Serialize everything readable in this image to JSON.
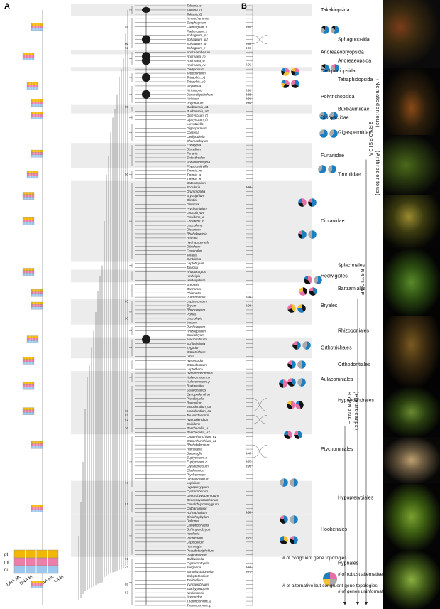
{
  "panels": {
    "a": "A",
    "b": "B"
  },
  "taxa": [
    "Takakia_c",
    "Takakia_l1",
    "Takakia_l2",
    "Ambuchanania",
    "Eosphagnum",
    "Flatbergium_n",
    "Flatbergium_s",
    "Sphagnum_p1",
    "Sphagnum_p2",
    "Sphagnum_g",
    "Sphagnum_r",
    "Andreaeobryum",
    "Andreaea_ro",
    "Andreaea_w",
    "Andreaea_ru",
    "Oedipodium",
    "Tetrodontium",
    "Tetraphis_p1",
    "Tetraphis_p2",
    "Alophosia",
    "Atrichopsis",
    "Dendroligotrichum",
    "Atrichum",
    "Pogonatum",
    "Buxbaumia_a1",
    "Buxbaumia_a2",
    "Diphyscium_f1",
    "Diphyscium_f2",
    "Lorentziella",
    "Gigaspermum",
    "Costesia",
    "Oedipodiella",
    "Chameobryum",
    "Encalypta",
    "Discelium",
    "Funaria",
    "Entosthodon",
    "Aphanorrhegma",
    "Physcomitrella",
    "Timmia_m",
    "Timmia_a",
    "Timmia_n",
    "Catoscopium",
    "Scouleria",
    "Drummondia",
    "Bryoxiphium",
    "Blindia",
    "Grimmia",
    "Ptychomitrium",
    "Leucobryum",
    "Fissidens_d",
    "Fissidens_b",
    "Leucoloma",
    "Dicranum",
    "Rhabdoweisia",
    "Bruchia",
    "Hydropogonella",
    "Ditrichum",
    "Ceratodon",
    "Tortella",
    "Syntrichia",
    "Leptobryum",
    "Tayloria",
    "Rhacocarpus",
    "Hedwigia",
    "Hedwigidium",
    "Breutelia",
    "Bartramia",
    "Philonotis",
    "Pulchrinodus",
    "Leptostomum",
    "Bryum",
    "Rhodobryum",
    "Pohlia",
    "Leucolepis",
    "Mnium",
    "Pyrrhobryum",
    "Rhizogonium",
    "Goniobryum",
    "Macromitrium",
    "Schlotheimia",
    "Zygodon",
    "Orthotrichum",
    "Ulota",
    "Hymenodon",
    "Orthodontium",
    "Leptotheca",
    "Hymenodontopsis",
    "Aulacomnium_h",
    "Aulacomnium_p",
    "Braithwaitea",
    "Sciadocladus",
    "Cyrtopodendron",
    "Pterobryella",
    "Racopilum",
    "Mniodendron_co",
    "Mniodendron_ca",
    "Touwiodendron",
    "Hypnodendron",
    "Spiridens",
    "Bescherellia_e1",
    "Bescherellia_e2",
    "Orthorrhynchium_e1",
    "Orthorrhynchium_e2",
    "Rhabdodontium",
    "Hampeella",
    "Garovaglia",
    "Euptychium_s",
    "Euptychium_c",
    "Glyphothecium",
    "Cladomnion",
    "Ptychomnion",
    "Dichelodontium",
    "Lopidium",
    "Hypopterygium",
    "Cyathophorum",
    "Dendrohypopterygium",
    "Dendrocyathophorum",
    "Canalohypopterygium",
    "Catharomnion",
    "Achrophyllum",
    "Distichophyllum",
    "Daltonia",
    "Calyptrochaeta",
    "Schimperobryum",
    "Hookeria",
    "Pilotrichum",
    "Lepidopilum",
    "Hemiragis",
    "Pseudotaxiphyllum",
    "Plagiothecium",
    "Baldwiniella",
    "Cyptodontopsis",
    "Jaegerina",
    "Symphysodontella",
    "Calyptothecium",
    "Taxithelium",
    "Yunnanobryum",
    "Trachypodopsis",
    "Neckeropsis",
    "Anomodon",
    "Thamnobryum_a",
    "Thamnobryum_p"
  ],
  "clades": [
    {
      "label": "Takakiopsida",
      "row": 1,
      "pies": 0
    },
    {
      "label": "Sphagnopsida",
      "row": 8,
      "pies": 2
    },
    {
      "label": "Andreaeobryopsida",
      "row": 11,
      "pies": 0
    },
    {
      "label": "Andreaeopsida",
      "row": 13,
      "pies": 2
    },
    {
      "label": "Oedipodiopsida",
      "row": 15.5,
      "pies": 0
    },
    {
      "label": "Tetraphidopsida",
      "row": 17.5,
      "pies": 0
    },
    {
      "label": "Polytrichopsida",
      "row": 21.5,
      "pies": 0
    },
    {
      "label": "Buxbaumiidae",
      "row": 24.5,
      "pies": 0
    },
    {
      "label": "Diphysciidae",
      "row": 26.5,
      "pies": 2
    },
    {
      "label": "Gigaspermidae",
      "row": 30,
      "pies": 2
    },
    {
      "label": "Funariidae",
      "row": 35.5,
      "pies": 2
    },
    {
      "label": "Timmiidae",
      "row": 40,
      "pies": 2
    },
    {
      "label": "Dicranidae",
      "row": 51,
      "pies": 0
    },
    {
      "label": "Splachnales",
      "row": 61.5,
      "pies": 0
    },
    {
      "label": "Hedwigiales",
      "row": 64,
      "pies": 2
    },
    {
      "label": "Bartramiales",
      "row": 67,
      "pies": 0
    },
    {
      "label": "Bryales",
      "row": 71,
      "pies": 0
    },
    {
      "label": "Rhizogoniales",
      "row": 77,
      "pies": 0
    },
    {
      "label": "Orthotrichales",
      "row": 81,
      "pies": 0
    },
    {
      "label": "Orthodontiales",
      "row": 85,
      "pies": 0
    },
    {
      "label": "Aulacomniales",
      "row": 88.5,
      "pies": 0
    },
    {
      "label": "Hypnodendrales",
      "row": 93.5,
      "pies": 0
    },
    {
      "label": "Ptychomniales",
      "row": 105,
      "pies": 0
    },
    {
      "label": "Hypopterygiales",
      "row": 116.5,
      "pies": 0
    },
    {
      "label": "Hookeriales",
      "row": 124,
      "pies": 0
    },
    {
      "label": "Hypnales",
      "row": 132,
      "pies": 0
    }
  ],
  "vertical_labels": {
    "nematodontous": "(Nematodontous)",
    "bryopsida": "BRYOPSIDA",
    "arthrodontous": "(Arthrodontous)",
    "bryidae": "BRYIDAE",
    "hypnanae": "HYPNANAE",
    "pleurocarps": "(Pleurocarps)"
  },
  "support_values": [
    "55",
    "91",
    "90",
    "92",
    "0.68",
    "0.66",
    "0.91",
    "0.99",
    "0.85",
    "0.91",
    "0.62",
    "95",
    "96",
    "0.99",
    "0.94",
    "0.99",
    "63",
    "96",
    "97",
    "93",
    "61",
    "36",
    "74",
    "0.77",
    "0.99",
    "0.47",
    "51",
    "0.53",
    "0.73",
    "91",
    "43",
    "0.56",
    "0.73",
    "95",
    "53",
    "0.63"
  ],
  "legend_a": {
    "rows": [
      "pt",
      "mt",
      "nu"
    ],
    "cols": [
      "DNA ML",
      "AA ML",
      "DNA BI",
      "AA BI"
    ],
    "colors": {
      "pt": "#f2b705",
      "mt": "#ec7fa9",
      "nu": "#9cc8ee"
    }
  },
  "legend_b": {
    "congruent": "# of congruent gene topologies",
    "robust": "# of robust alternative gene trees",
    "alternative": "# of alternative but congruent gene topologies",
    "uninformative": "# of genes uninformative"
  },
  "pie_colors": {
    "congruent": "#1e7fc0",
    "robust": "#e96fa2",
    "alternative": "#f2c230",
    "uninformative": "#a9a9a9",
    "dark": "#111111"
  }
}
